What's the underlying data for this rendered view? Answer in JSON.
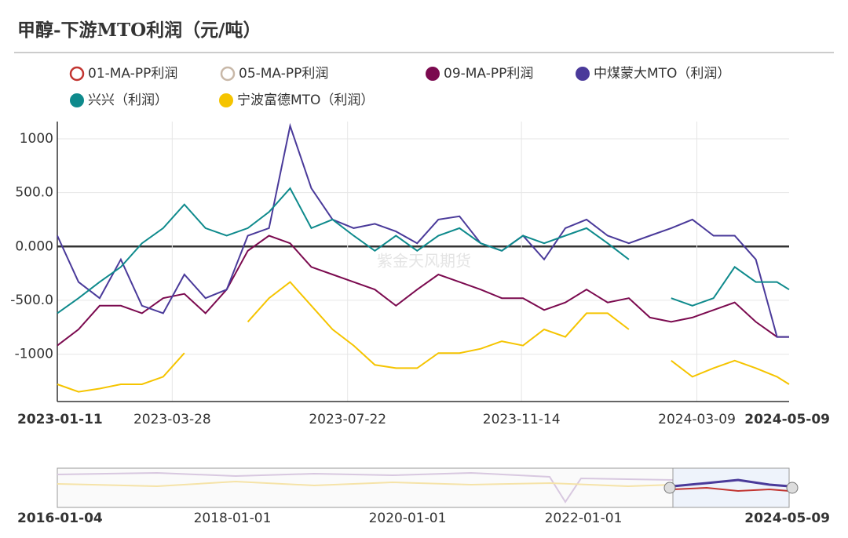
{
  "chart_data": {
    "type": "line",
    "title": "甲醇-下游MTO利润（元/吨）",
    "watermark": "紫金天风期货",
    "x": [
      "2023-01-11",
      "2023-01-25",
      "2023-02-08",
      "2023-02-22",
      "2023-03-08",
      "2023-03-22",
      "2023-04-05",
      "2023-04-19",
      "2023-05-03",
      "2023-05-17",
      "2023-05-31",
      "2023-06-14",
      "2023-06-28",
      "2023-07-12",
      "2023-07-26",
      "2023-08-09",
      "2023-08-23",
      "2023-09-06",
      "2023-09-20",
      "2023-10-04",
      "2023-10-18",
      "2023-11-01",
      "2023-11-15",
      "2023-11-29",
      "2023-12-13",
      "2023-12-27",
      "2024-01-10",
      "2024-01-24",
      "2024-02-07",
      "2024-02-21",
      "2024-03-06",
      "2024-03-20",
      "2024-04-03",
      "2024-04-17",
      "2024-05-01",
      "2024-05-09"
    ],
    "xlim": [
      "2023-01-11",
      "2024-05-09"
    ],
    "xticks": [
      "2023-01-11",
      "2023-03-28",
      "2023-07-22",
      "2023-11-14",
      "2024-03-09",
      "2024-05-09"
    ],
    "ylim": [
      -1440,
      1160
    ],
    "yticks": [
      {
        "value": -1000,
        "label": "-1000"
      },
      {
        "value": -500,
        "label": "-500.0"
      },
      {
        "value": 0,
        "label": "0.000"
      },
      {
        "value": 500,
        "label": "500.0"
      },
      1000
    ],
    "grid": true,
    "series": [
      {
        "name": "01-MA-PP利润",
        "color": "#c23531",
        "visible": false,
        "values": [
          null,
          null,
          null,
          null,
          null,
          null,
          null,
          null,
          null,
          null,
          null,
          null,
          null,
          null,
          null,
          null,
          null,
          null,
          null,
          null,
          null,
          null,
          null,
          null,
          null,
          null,
          null,
          null,
          null,
          null,
          null,
          null,
          null,
          null,
          null,
          null
        ]
      },
      {
        "name": "05-MA-PP利润",
        "color": "#c8b8a8",
        "visible": false,
        "values": [
          null,
          null,
          null,
          null,
          null,
          null,
          null,
          null,
          null,
          null,
          null,
          null,
          null,
          null,
          null,
          null,
          null,
          null,
          null,
          null,
          null,
          null,
          null,
          null,
          null,
          null,
          null,
          null,
          null,
          null,
          null,
          null,
          null,
          null,
          null,
          null
        ]
      },
      {
        "name": "09-MA-PP利润",
        "color": "#7b0a4f",
        "visible": true,
        "values": [
          -920,
          -770,
          -550,
          -550,
          -620,
          -480,
          -440,
          -620,
          -400,
          -40,
          100,
          30,
          -190,
          -260,
          -330,
          -400,
          -550,
          -400,
          -260,
          -330,
          -400,
          -480,
          -480,
          -590,
          -520,
          -400,
          -520,
          -480,
          -660,
          -700,
          -660,
          -590,
          -520,
          -700,
          -840,
          -840
        ]
      },
      {
        "name": "中煤蒙大MTO（利润）",
        "color": "#4a3a9a",
        "visible": true,
        "values": [
          100,
          -330,
          -480,
          -120,
          -550,
          -620,
          -260,
          -480,
          -400,
          100,
          170,
          1120,
          540,
          250,
          170,
          210,
          140,
          30,
          250,
          280,
          30,
          -40,
          100,
          -120,
          170,
          250,
          100,
          30,
          100,
          170,
          250,
          100,
          100,
          -120,
          -840,
          -840
        ]
      },
      {
        "name": "兴兴（利润）",
        "color": "#0e8a8c",
        "visible": true,
        "values": [
          -620,
          -480,
          -330,
          -190,
          30,
          170,
          390,
          170,
          100,
          170,
          320,
          540,
          170,
          250,
          100,
          -40,
          100,
          -40,
          100,
          170,
          30,
          -40,
          100,
          30,
          100,
          170,
          30,
          -120,
          null,
          -480,
          -550,
          -480,
          -190,
          -330,
          -330,
          -400
        ]
      },
      {
        "name": "宁波富德MTO（利润）",
        "color": "#f5c400",
        "visible": true,
        "values": [
          -1280,
          -1350,
          -1320,
          -1280,
          -1280,
          -1210,
          -990,
          null,
          null,
          -700,
          -480,
          -330,
          -550,
          -770,
          -920,
          -1100,
          -1130,
          -1130,
          -990,
          -990,
          -950,
          -880,
          -920,
          -770,
          -840,
          -620,
          -620,
          -770,
          null,
          -1060,
          -1210,
          -1130,
          -1060,
          -1130,
          -1210,
          -1280
        ]
      }
    ],
    "navigator": {
      "labels": [
        "2016-01-04",
        "2018-01-01",
        "2020-01-01",
        "2022-01-01",
        "2024-05-09"
      ]
    }
  }
}
